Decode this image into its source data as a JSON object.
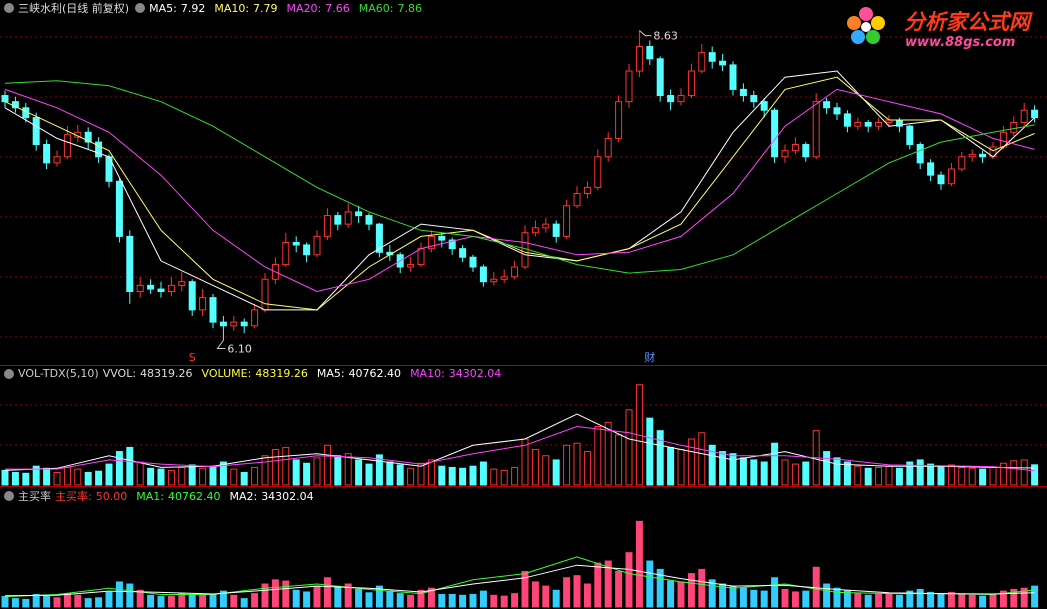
{
  "chart_data": [
    {
      "type": "candlestick",
      "title": "三峡水利(日线 前复权)",
      "open": [
        8.1,
        8.05,
        8.0,
        7.92,
        7.7,
        7.55,
        7.6,
        7.76,
        7.8,
        7.72,
        7.6,
        7.4,
        6.95,
        6.5,
        6.55,
        6.52,
        6.5,
        6.55,
        6.58,
        6.35,
        6.45,
        6.25,
        6.22,
        6.25,
        6.22,
        6.35,
        6.6,
        6.72,
        6.9,
        6.88,
        6.8,
        6.95,
        7.12,
        7.05,
        7.15,
        7.12,
        7.05,
        6.82,
        6.8,
        6.7,
        6.72,
        6.85,
        6.95,
        6.92,
        6.85,
        6.78,
        6.7,
        6.58,
        6.6,
        6.62,
        6.7,
        6.98,
        7.02,
        7.05,
        6.95,
        7.2,
        7.3,
        7.35,
        7.6,
        7.75,
        8.05,
        8.3,
        8.5,
        8.4,
        8.1,
        8.05,
        8.1,
        8.3,
        8.45,
        8.38,
        8.35,
        8.15,
        8.1,
        8.05,
        7.98,
        7.6,
        7.65,
        7.7,
        7.6,
        8.05,
        8.0,
        7.95,
        7.85,
        7.88,
        7.85,
        7.88,
        7.9,
        7.85,
        7.7,
        7.55,
        7.45,
        7.38,
        7.5,
        7.6,
        7.62,
        7.6,
        7.68,
        7.8,
        7.88,
        7.98
      ],
      "high": [
        8.14,
        8.09,
        8.04,
        7.96,
        7.74,
        7.65,
        7.85,
        7.86,
        7.84,
        7.76,
        7.62,
        7.42,
        7.0,
        6.62,
        6.6,
        6.58,
        6.62,
        6.66,
        6.6,
        6.52,
        6.48,
        6.3,
        6.3,
        6.28,
        6.4,
        6.65,
        6.78,
        6.98,
        6.95,
        6.9,
        7.0,
        7.18,
        7.15,
        7.22,
        7.2,
        7.14,
        7.06,
        6.88,
        6.82,
        6.78,
        6.9,
        7.0,
        6.98,
        6.94,
        6.88,
        6.8,
        6.72,
        6.66,
        6.68,
        6.75,
        7.04,
        7.08,
        7.1,
        7.08,
        7.25,
        7.36,
        7.4,
        7.66,
        7.8,
        8.1,
        8.36,
        8.63,
        8.55,
        8.42,
        8.15,
        8.16,
        8.36,
        8.52,
        8.5,
        8.44,
        8.38,
        8.2,
        8.14,
        8.08,
        8.0,
        7.7,
        7.76,
        7.72,
        8.12,
        8.08,
        8.04,
        7.98,
        7.92,
        7.9,
        7.92,
        7.94,
        7.92,
        7.86,
        7.72,
        7.58,
        7.48,
        7.55,
        7.64,
        7.66,
        7.65,
        7.72,
        7.85,
        7.93,
        8.04,
        8.02
      ],
      "low": [
        8.0,
        7.96,
        7.88,
        7.65,
        7.5,
        7.52,
        7.58,
        7.72,
        7.66,
        7.55,
        7.35,
        6.9,
        6.4,
        6.45,
        6.48,
        6.45,
        6.46,
        6.5,
        6.3,
        6.3,
        6.2,
        6.1,
        6.18,
        6.16,
        6.2,
        6.33,
        6.56,
        6.7,
        6.82,
        6.74,
        6.78,
        6.92,
        7.0,
        7.02,
        7.06,
        7.0,
        6.78,
        6.75,
        6.65,
        6.66,
        6.7,
        6.82,
        6.86,
        6.8,
        6.74,
        6.66,
        6.54,
        6.55,
        6.57,
        6.6,
        6.68,
        6.95,
        6.98,
        6.9,
        6.93,
        7.18,
        7.26,
        7.33,
        7.56,
        7.72,
        8.0,
        8.25,
        8.35,
        8.05,
        7.98,
        8.02,
        8.08,
        8.28,
        8.32,
        8.3,
        8.1,
        8.05,
        8.0,
        7.92,
        7.55,
        7.55,
        7.62,
        7.56,
        7.58,
        7.95,
        7.9,
        7.8,
        7.82,
        7.8,
        7.82,
        7.84,
        7.8,
        7.66,
        7.5,
        7.4,
        7.33,
        7.36,
        7.48,
        7.56,
        7.55,
        7.58,
        7.66,
        7.77,
        7.85,
        7.88
      ],
      "close": [
        8.05,
        8.0,
        7.92,
        7.7,
        7.55,
        7.6,
        7.78,
        7.8,
        7.72,
        7.6,
        7.4,
        6.95,
        6.5,
        6.55,
        6.52,
        6.5,
        6.55,
        6.58,
        6.35,
        6.45,
        6.25,
        6.22,
        6.25,
        6.22,
        6.35,
        6.6,
        6.72,
        6.9,
        6.88,
        6.8,
        6.95,
        7.12,
        7.05,
        7.15,
        7.12,
        7.05,
        6.82,
        6.8,
        6.7,
        6.72,
        6.85,
        6.95,
        6.92,
        6.85,
        6.78,
        6.7,
        6.58,
        6.6,
        6.62,
        6.7,
        6.98,
        7.02,
        7.05,
        6.95,
        7.2,
        7.3,
        7.35,
        7.6,
        7.75,
        8.05,
        8.3,
        8.5,
        8.4,
        8.1,
        8.05,
        8.1,
        8.3,
        8.45,
        8.38,
        8.35,
        8.15,
        8.1,
        8.05,
        7.98,
        7.6,
        7.65,
        7.7,
        7.6,
        8.05,
        8.0,
        7.95,
        7.85,
        7.88,
        7.85,
        7.88,
        7.9,
        7.85,
        7.7,
        7.55,
        7.45,
        7.38,
        7.5,
        7.6,
        7.62,
        7.6,
        7.68,
        7.8,
        7.88,
        7.98,
        7.92
      ],
      "up_color": "#ff3232",
      "down_color": "#54ffff",
      "ylim": [
        5.9,
        8.88
      ],
      "max_label": "8.63",
      "min_label": "6.10",
      "signals": [
        {
          "label": "S",
          "x": 18,
          "color": "#ff3232"
        },
        {
          "label": "财",
          "x": 62,
          "color": "#5f8fff"
        }
      ],
      "series": [
        {
          "name": "MA5:",
          "label": "7.92",
          "color": "#ffffff",
          "x": [
            0,
            5,
            10,
            15,
            20,
            25,
            30,
            35,
            40,
            45,
            50,
            55,
            60,
            65,
            70,
            75,
            80,
            85,
            90,
            95,
            99
          ],
          "values": [
            8.0,
            7.75,
            7.6,
            6.75,
            6.55,
            6.35,
            6.35,
            6.8,
            7.05,
            7.0,
            6.8,
            6.75,
            6.85,
            7.15,
            7.8,
            8.25,
            8.3,
            7.85,
            7.9,
            7.6,
            7.92
          ]
        },
        {
          "name": "MA10:",
          "label": "7.79",
          "color": "#ffff66",
          "x": [
            0,
            5,
            10,
            15,
            20,
            25,
            30,
            35,
            40,
            45,
            50,
            55,
            60,
            65,
            70,
            75,
            80,
            85,
            90,
            95,
            99
          ],
          "values": [
            8.05,
            7.85,
            7.65,
            7.0,
            6.6,
            6.4,
            6.35,
            6.7,
            6.95,
            7.0,
            6.82,
            6.75,
            6.85,
            7.05,
            7.6,
            8.15,
            8.25,
            7.9,
            7.9,
            7.65,
            7.79
          ]
        },
        {
          "name": "MA20:",
          "label": "7.66",
          "color": "#ff44ff",
          "x": [
            0,
            5,
            10,
            15,
            20,
            25,
            30,
            35,
            40,
            45,
            50,
            55,
            60,
            65,
            70,
            75,
            80,
            85,
            90,
            95,
            99
          ],
          "values": [
            8.15,
            8.0,
            7.8,
            7.45,
            7.0,
            6.7,
            6.5,
            6.6,
            6.85,
            6.95,
            6.9,
            6.8,
            6.82,
            6.95,
            7.3,
            7.85,
            8.15,
            8.05,
            7.95,
            7.75,
            7.66
          ]
        },
        {
          "name": "MA60:",
          "label": "7.86",
          "color": "#33dd33",
          "x": [
            0,
            5,
            10,
            15,
            20,
            25,
            30,
            35,
            40,
            45,
            50,
            55,
            60,
            65,
            70,
            75,
            80,
            85,
            90,
            95,
            99
          ],
          "values": [
            8.2,
            8.22,
            8.18,
            8.05,
            7.85,
            7.6,
            7.35,
            7.15,
            7.0,
            6.95,
            6.85,
            6.72,
            6.65,
            6.68,
            6.8,
            7.05,
            7.3,
            7.55,
            7.72,
            7.8,
            7.86
          ]
        }
      ]
    },
    {
      "type": "bar",
      "title": "VOL-TDX(5,10)",
      "values": [
        35000,
        30000,
        28000,
        45000,
        40000,
        30000,
        42000,
        38000,
        30000,
        33000,
        50000,
        80000,
        90000,
        55000,
        40000,
        38000,
        35000,
        42000,
        48000,
        40000,
        45000,
        55000,
        38000,
        30000,
        42000,
        70000,
        85000,
        90000,
        60000,
        52000,
        65000,
        95000,
        70000,
        75000,
        60000,
        50000,
        72000,
        55000,
        48000,
        40000,
        52000,
        60000,
        45000,
        42000,
        40000,
        45000,
        55000,
        38000,
        35000,
        42000,
        110000,
        85000,
        70000,
        60000,
        95000,
        100000,
        80000,
        140000,
        150000,
        120000,
        180000,
        240000,
        160000,
        130000,
        90000,
        85000,
        110000,
        125000,
        95000,
        80000,
        75000,
        65000,
        60000,
        55000,
        100000,
        60000,
        50000,
        55000,
        130000,
        80000,
        65000,
        55000,
        45000,
        40000,
        42000,
        45000,
        40000,
        55000,
        60000,
        50000,
        45000,
        48000,
        42000,
        40000,
        38000,
        42000,
        52000,
        58000,
        60000,
        48319.26
      ],
      "ylim": [
        0,
        280000
      ],
      "header": [
        {
          "name": "VVOL:",
          "label": "48319.26",
          "color": "#dddddd"
        },
        {
          "name": "VOLUME:",
          "label": "48319.26",
          "color": "#ffff33"
        }
      ],
      "series": [
        {
          "name": "MA5:",
          "label": "40762.40",
          "color": "#ffffff",
          "x": [
            0,
            5,
            10,
            15,
            20,
            25,
            30,
            35,
            40,
            45,
            50,
            55,
            60,
            65,
            70,
            75,
            80,
            85,
            90,
            95,
            99
          ],
          "values": [
            35000,
            40000,
            70000,
            42000,
            45000,
            65000,
            75000,
            60000,
            45000,
            95000,
            110000,
            170000,
            110000,
            85000,
            60000,
            80000,
            50000,
            45000,
            45000,
            42000,
            40762.4
          ]
        },
        {
          "name": "MA10:",
          "label": "34302.04",
          "color": "#ff44ff",
          "x": [
            0,
            5,
            10,
            15,
            20,
            25,
            30,
            35,
            40,
            45,
            50,
            55,
            60,
            65,
            70,
            75,
            80,
            85,
            90,
            95,
            99
          ],
          "values": [
            38000,
            38000,
            60000,
            50000,
            44000,
            55000,
            70000,
            65000,
            50000,
            75000,
            95000,
            140000,
            125000,
            95000,
            70000,
            70000,
            62000,
            48000,
            46000,
            44000,
            34302.04
          ]
        }
      ]
    },
    {
      "type": "bar",
      "title": "主买率",
      "values": [
        25000,
        20000,
        18000,
        30000,
        26000,
        22000,
        32000,
        28000,
        20000,
        22000,
        35000,
        60000,
        55000,
        40000,
        28000,
        25000,
        26000,
        32000,
        30000,
        30000,
        30000,
        38000,
        28000,
        20000,
        32000,
        55000,
        65000,
        62000,
        40000,
        36000,
        50000,
        70000,
        48000,
        55000,
        42000,
        34000,
        50000,
        38000,
        32000,
        28000,
        40000,
        45000,
        30000,
        30000,
        28000,
        30000,
        38000,
        28000,
        26000,
        32000,
        85000,
        60000,
        50000,
        40000,
        70000,
        75000,
        55000,
        105000,
        110000,
        85000,
        130000,
        205000,
        110000,
        90000,
        62000,
        60000,
        80000,
        90000,
        65000,
        55000,
        50000,
        45000,
        40000,
        38000,
        70000,
        42000,
        36000,
        38000,
        95000,
        55000,
        45000,
        38000,
        32000,
        28000,
        30000,
        32000,
        28000,
        38000,
        42000,
        35000,
        32000,
        35000,
        30000,
        28000,
        26000,
        30000,
        38000,
        42000,
        45000,
        50000
      ],
      "colors": [
        "#3cf",
        "#3cf",
        "#3cf",
        "#3cf",
        "#3cf",
        "#f47",
        "#f47",
        "#f47",
        "#3cf",
        "#3cf",
        "#3cf",
        "#3cf",
        "#3cf",
        "#f47",
        "#3cf",
        "#3cf",
        "#f47",
        "#f47",
        "#3cf",
        "#f47",
        "#3cf",
        "#3cf",
        "#f47",
        "#3cf",
        "#f47",
        "#f47",
        "#f47",
        "#f47",
        "#3cf",
        "#3cf",
        "#f47",
        "#f47",
        "#3cf",
        "#f47",
        "#3cf",
        "#3cf",
        "#3cf",
        "#3cf",
        "#3cf",
        "#f47",
        "#f47",
        "#f47",
        "#3cf",
        "#3cf",
        "#3cf",
        "#3cf",
        "#3cf",
        "#f47",
        "#f47",
        "#f47",
        "#f47",
        "#f47",
        "#f47",
        "#3cf",
        "#f47",
        "#f47",
        "#f47",
        "#f47",
        "#f47",
        "#f47",
        "#f47",
        "#f47",
        "#3cf",
        "#3cf",
        "#3cf",
        "#f47",
        "#f47",
        "#f47",
        "#3cf",
        "#3cf",
        "#3cf",
        "#3cf",
        "#3cf",
        "#3cf",
        "#3cf",
        "#f47",
        "#f47",
        "#3cf",
        "#f47",
        "#3cf",
        "#3cf",
        "#3cf",
        "#f47",
        "#3cf",
        "#f47",
        "#f47",
        "#3cf",
        "#3cf",
        "#3cf",
        "#3cf",
        "#3cf",
        "#f47",
        "#f47",
        "#f47",
        "#3cf",
        "#f47",
        "#f47",
        "#f47",
        "#f47",
        "#3cf"
      ],
      "ylim": [
        0,
        280000
      ],
      "header": [
        {
          "name": "主买率:",
          "label": "50.00",
          "color": "#ff3232"
        }
      ],
      "series": [
        {
          "name": "MA1:",
          "label": "40762.40",
          "color": "#33ff33",
          "x": [
            0,
            5,
            10,
            15,
            20,
            25,
            30,
            35,
            40,
            45,
            50,
            55,
            60,
            65,
            70,
            75,
            80,
            85,
            90,
            95,
            99
          ],
          "values": [
            25000,
            30000,
            45000,
            30000,
            30000,
            45000,
            55000,
            42000,
            32000,
            65000,
            80000,
            120000,
            80000,
            60000,
            45000,
            55000,
            35000,
            32000,
            32000,
            30000,
            40762.4
          ]
        },
        {
          "name": "MA2:",
          "label": "34302.04",
          "color": "#ffffff",
          "x": [
            0,
            5,
            10,
            15,
            20,
            25,
            30,
            35,
            40,
            45,
            50,
            55,
            60,
            65,
            70,
            75,
            80,
            85,
            90,
            95,
            99
          ],
          "values": [
            27000,
            28000,
            38000,
            35000,
            31000,
            40000,
            50000,
            45000,
            36000,
            55000,
            70000,
            100000,
            90000,
            68000,
            50000,
            52000,
            42000,
            34000,
            32000,
            31000,
            34302.04
          ]
        }
      ]
    }
  ],
  "watermark": {
    "name": "分析家公式网",
    "url": "www.88gs.com"
  }
}
